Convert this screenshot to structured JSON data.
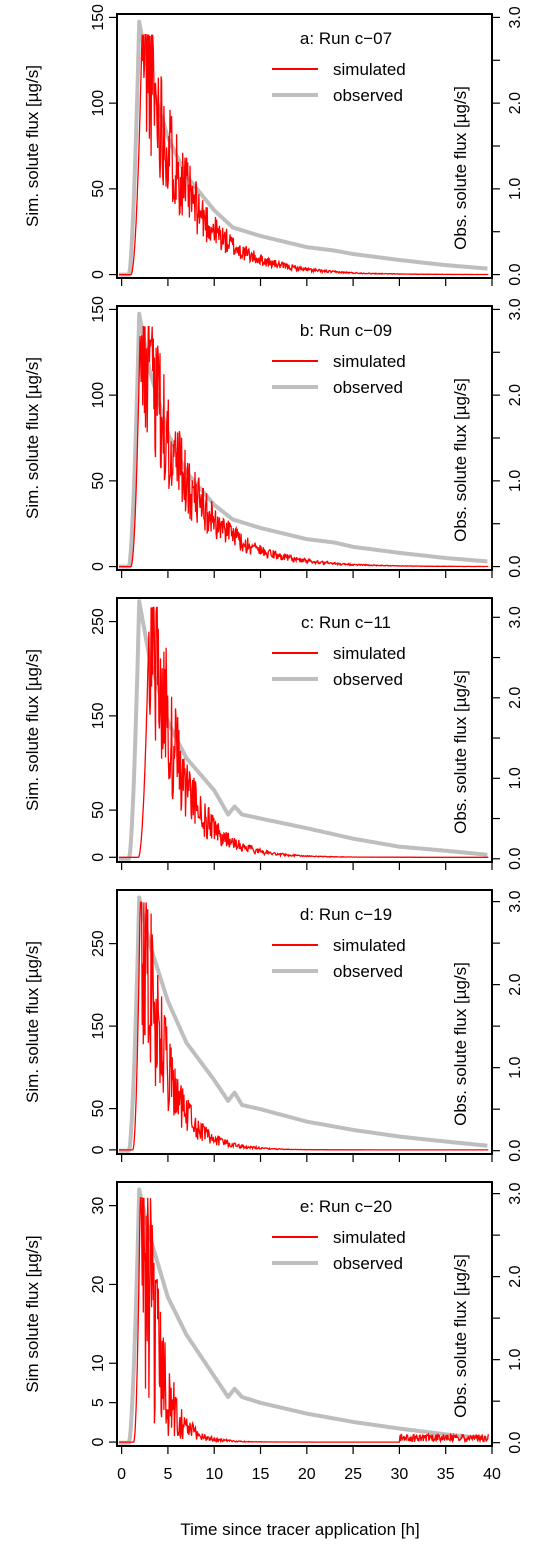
{
  "figure": {
    "xlabel": "Time since tracer application [h]",
    "x_ticks": [
      0,
      5,
      10,
      15,
      20,
      25,
      30,
      35,
      40
    ],
    "right_ticks": [
      0.0,
      1.0,
      2.0,
      3.0
    ],
    "right_tick_labels": [
      "0.0",
      "1.0",
      "2.0",
      "3.0"
    ],
    "colors": {
      "simulated": "#ff0000",
      "observed": "#bebebe",
      "axis": "#000000"
    }
  },
  "chart_data": [
    {
      "type": "line",
      "panel": "a",
      "title": "a: Run c−07",
      "ylabel": "Sim. solute flux [µg/s]",
      "ylabel2": "Obs. solute flux [µg/s]",
      "xlim": [
        -0.5,
        40
      ],
      "ylim": [
        -2,
        152
      ],
      "ylim2": [
        -0.04,
        3.04
      ],
      "yticks": [
        0,
        50,
        100,
        150
      ],
      "yticks2": [
        0,
        0.5,
        1.0,
        1.5,
        2.0,
        2.5,
        3.0
      ],
      "legend": "top-right",
      "series": [
        {
          "name": "simulated",
          "axis": "left",
          "peak_x": 2.2,
          "peak_y": 140,
          "onset_x": 1.0,
          "decay": 4.6,
          "tail_y": 0,
          "noise": 0.4
        },
        {
          "name": "observed",
          "axis": "right",
          "peak_x": 1.9,
          "peak_y": 2.95,
          "onset_x": 0.8,
          "decay_points": [
            [
              1.9,
              2.95
            ],
            [
              3,
              2.3
            ],
            [
              5,
              1.6
            ],
            [
              7,
              1.15
            ],
            [
              10,
              0.75
            ],
            [
              12,
              0.55
            ],
            [
              15,
              0.45
            ],
            [
              20,
              0.32
            ],
            [
              23,
              0.28
            ],
            [
              25,
              0.24
            ],
            [
              30,
              0.17
            ],
            [
              35,
              0.11
            ],
            [
              39.5,
              0.07
            ]
          ]
        }
      ]
    },
    {
      "type": "line",
      "panel": "b",
      "title": "b: Run c−09",
      "ylabel": "Sim. solute flux [µg/s]",
      "ylabel2": "Obs. solute flux [µg/s]",
      "xlim": [
        -0.5,
        40
      ],
      "ylim": [
        -2,
        152
      ],
      "ylim2": [
        -0.04,
        3.04
      ],
      "yticks": [
        0,
        50,
        100,
        150
      ],
      "yticks2": [
        0,
        0.5,
        1.0,
        1.5,
        2.0,
        2.5,
        3.0
      ],
      "legend": "top-right",
      "series": [
        {
          "name": "simulated",
          "axis": "left",
          "peak_x": 2.0,
          "peak_y": 140,
          "onset_x": 1.0,
          "decay": 4.8,
          "tail_y": 0,
          "noise": 0.4
        },
        {
          "name": "observed",
          "axis": "right",
          "peak_x": 1.9,
          "peak_y": 2.95,
          "onset_x": 0.8,
          "decay_points": [
            [
              1.9,
              2.95
            ],
            [
              3,
              2.3
            ],
            [
              5,
              1.55
            ],
            [
              7,
              1.1
            ],
            [
              10,
              0.72
            ],
            [
              12,
              0.55
            ],
            [
              15,
              0.45
            ],
            [
              20,
              0.32
            ],
            [
              23,
              0.28
            ],
            [
              25,
              0.23
            ],
            [
              30,
              0.16
            ],
            [
              35,
              0.1
            ],
            [
              39.5,
              0.06
            ]
          ]
        }
      ]
    },
    {
      "type": "line",
      "panel": "c",
      "title": "c: Run c−11",
      "ylabel": "Sim. solute flux [µg/s]",
      "ylabel2": "Obs. solute flux [µg/s]",
      "xlim": [
        -0.5,
        40
      ],
      "ylim": [
        -5,
        275
      ],
      "ylim2": [
        -0.04,
        3.24
      ],
      "yticks": [
        0,
        50,
        150,
        250
      ],
      "yticks2": [
        0,
        0.5,
        1.0,
        1.5,
        2.0,
        2.5,
        3.0
      ],
      "legend": "top-right",
      "series": [
        {
          "name": "simulated",
          "axis": "left",
          "peak_x": 3.0,
          "peak_y": 265,
          "onset_x": 1.8,
          "decay": 3.2,
          "tail_y": 0,
          "noise": 0.5
        },
        {
          "name": "observed",
          "axis": "right",
          "peak_x": 1.9,
          "peak_y": 3.2,
          "onset_x": 0.8,
          "decay_points": [
            [
              1.9,
              3.2
            ],
            [
              3,
              2.5
            ],
            [
              5,
              1.7
            ],
            [
              7,
              1.25
            ],
            [
              10,
              0.85
            ],
            [
              11.5,
              0.55
            ],
            [
              12.2,
              0.65
            ],
            [
              13,
              0.55
            ],
            [
              15,
              0.5
            ],
            [
              20,
              0.38
            ],
            [
              25,
              0.25
            ],
            [
              30,
              0.15
            ],
            [
              35,
              0.1
            ],
            [
              39.5,
              0.05
            ]
          ]
        }
      ]
    },
    {
      "type": "line",
      "panel": "d",
      "title": "d: Run c−19",
      "ylabel": "Sim. solute flux [µg/s]",
      "ylabel2": "Obs. solute flux [µg/s]",
      "xlim": [
        -0.5,
        40
      ],
      "ylim": [
        -5,
        315
      ],
      "ylim2": [
        -0.04,
        3.14
      ],
      "yticks": [
        0,
        50,
        150,
        250
      ],
      "yticks2": [
        0,
        0.5,
        1.0,
        1.5,
        2.0,
        2.5,
        3.0
      ],
      "legend": "top-right",
      "series": [
        {
          "name": "simulated",
          "axis": "left",
          "peak_x": 2.0,
          "peak_y": 300,
          "onset_x": 1.2,
          "decay": 2.6,
          "tail_y": 0,
          "noise": 0.55
        },
        {
          "name": "observed",
          "axis": "right",
          "peak_x": 1.9,
          "peak_y": 3.05,
          "onset_x": 0.8,
          "decay_points": [
            [
              1.9,
              3.05
            ],
            [
              3,
              2.5
            ],
            [
              5,
              1.8
            ],
            [
              7,
              1.3
            ],
            [
              10,
              0.85
            ],
            [
              11.5,
              0.6
            ],
            [
              12.2,
              0.7
            ],
            [
              13,
              0.55
            ],
            [
              15,
              0.5
            ],
            [
              20,
              0.35
            ],
            [
              25,
              0.25
            ],
            [
              30,
              0.17
            ],
            [
              35,
              0.11
            ],
            [
              39.5,
              0.06
            ]
          ]
        }
      ]
    },
    {
      "type": "line",
      "panel": "e",
      "title": "e: Run c−20",
      "ylabel": "Sim solute flux [µg/s]",
      "ylabel2": "Obs. solute flux [µg/s]",
      "xlim": [
        -0.5,
        40
      ],
      "ylim": [
        -0.5,
        33
      ],
      "ylim2": [
        -0.04,
        3.14
      ],
      "yticks": [
        0,
        5,
        10,
        20,
        30
      ],
      "yticks2": [
        0,
        0.5,
        1.0,
        1.5,
        2.0,
        2.5,
        3.0
      ],
      "legend": "top-right",
      "series": [
        {
          "name": "simulated",
          "axis": "left",
          "peak_x": 2.0,
          "peak_y": 31,
          "onset_x": 1.3,
          "decay": 1.8,
          "tail_y": 0.5,
          "noise": 0.9
        },
        {
          "name": "observed",
          "axis": "right",
          "peak_x": 1.9,
          "peak_y": 3.05,
          "onset_x": 0.8,
          "decay_points": [
            [
              1.9,
              3.05
            ],
            [
              3,
              2.5
            ],
            [
              5,
              1.75
            ],
            [
              7,
              1.3
            ],
            [
              10,
              0.8
            ],
            [
              11.5,
              0.55
            ],
            [
              12.2,
              0.65
            ],
            [
              13,
              0.55
            ],
            [
              15,
              0.48
            ],
            [
              20,
              0.35
            ],
            [
              25,
              0.25
            ],
            [
              30,
              0.17
            ],
            [
              35,
              0.1
            ],
            [
              39.5,
              0.05
            ]
          ]
        }
      ]
    }
  ]
}
